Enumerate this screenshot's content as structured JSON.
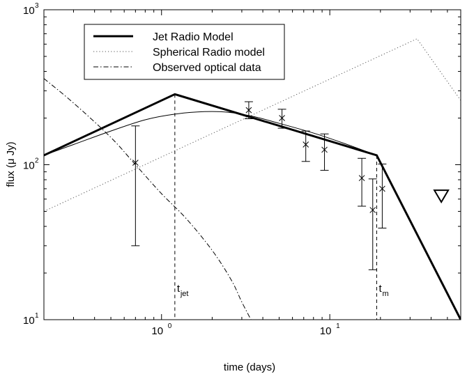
{
  "chart_data": {
    "type": "line",
    "xscale": "log",
    "yscale": "log",
    "xlim": [
      0.2,
      60
    ],
    "ylim": [
      10,
      1000
    ],
    "xlabel": "time (days)",
    "ylabel": "flux (μ Jy)",
    "x_ticks": [
      {
        "value": 1,
        "base": "10",
        "exp": "0"
      },
      {
        "value": 10,
        "base": "10",
        "exp": "1"
      }
    ],
    "y_ticks": [
      {
        "value": 10,
        "base": "10",
        "exp": "1"
      },
      {
        "value": 100,
        "base": "10",
        "exp": "2"
      },
      {
        "value": 1000,
        "base": "10",
        "exp": "3"
      }
    ],
    "legend": {
      "placement": "top-left",
      "entries": [
        {
          "label": "Jet Radio Model",
          "style": "solid-thick"
        },
        {
          "label": "Spherical Radio model",
          "style": "dotted"
        },
        {
          "label": "Observed optical data",
          "style": "dash-dot"
        }
      ]
    },
    "series": [
      {
        "name": "Jet Radio Model",
        "style": "solid-thick",
        "x": [
          0.2,
          1.2,
          19,
          60
        ],
        "y": [
          115,
          285,
          115,
          10
        ]
      },
      {
        "name": "Spherical Radio model",
        "style": "dotted",
        "x": [
          0.2,
          33,
          60
        ],
        "y": [
          50,
          650,
          260
        ]
      },
      {
        "name": "Observed optical data",
        "style": "dash-dot",
        "x": [
          0.2,
          0.3,
          0.5,
          0.7,
          1.0,
          1.4,
          2.0,
          2.6,
          3.0,
          3.4
        ],
        "y": [
          360,
          250,
          150,
          100,
          65,
          45,
          28,
          18,
          13,
          10
        ]
      },
      {
        "style": "solid-thin",
        "x": [
          0.2,
          0.3,
          0.5,
          0.8,
          1.2,
          1.8,
          2.5,
          3.5,
          5,
          8,
          12,
          19
        ],
        "y": [
          115,
          135,
          165,
          195,
          212,
          220,
          218,
          205,
          185,
          160,
          138,
          115
        ]
      }
    ],
    "radio_data": [
      {
        "x": 0.7,
        "y": 103,
        "y_low": 30,
        "y_high": 178
      },
      {
        "x": 3.3,
        "y": 225,
        "y_low": 198,
        "y_high": 255
      },
      {
        "x": 5.2,
        "y": 200,
        "y_low": 172,
        "y_high": 228
      },
      {
        "x": 7.2,
        "y": 135,
        "y_low": 105,
        "y_high": 165
      },
      {
        "x": 9.3,
        "y": 125,
        "y_low": 92,
        "y_high": 158
      },
      {
        "x": 15.5,
        "y": 82,
        "y_low": 54,
        "y_high": 110
      },
      {
        "x": 18.0,
        "y": 51,
        "y_low": 21,
        "y_high": 81
      },
      {
        "x": 20.5,
        "y": 70,
        "y_low": 39,
        "y_high": 101
      }
    ],
    "upper_limit": {
      "x": 46,
      "y": 63
    },
    "vlines": [
      {
        "x": 1.2,
        "label": "t",
        "sub": "jet"
      },
      {
        "x": 19,
        "label": "t",
        "sub": "m"
      }
    ]
  }
}
